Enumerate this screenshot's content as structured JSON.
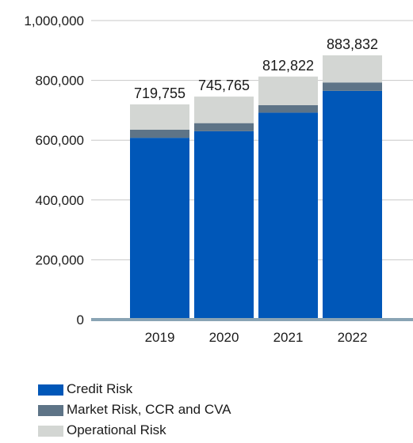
{
  "chart_data": {
    "type": "bar",
    "stacked": true,
    "categories": [
      "2019",
      "2020",
      "2021",
      "2022"
    ],
    "series": [
      {
        "name": "Credit Risk",
        "color": "#0057B8",
        "values": [
          608000,
          630000,
          692000,
          765000
        ]
      },
      {
        "name": "Market Risk, CCR and CVA",
        "color": "#5E7487",
        "values": [
          27000,
          27000,
          25000,
          28000
        ]
      },
      {
        "name": "Operational Risk",
        "color": "#D3D6D3",
        "values": [
          84755,
          88765,
          95822,
          90832
        ]
      }
    ],
    "totals": [
      "719,755",
      "745,765",
      "812,822",
      "883,832"
    ],
    "ylim": [
      0,
      1000000
    ],
    "yticks": [
      {
        "value": 0,
        "label": "0"
      },
      {
        "value": 200000,
        "label": "200,000"
      },
      {
        "value": 400000,
        "label": "400,000"
      },
      {
        "value": 600000,
        "label": "600,000"
      },
      {
        "value": 800000,
        "label": "800,000"
      },
      {
        "value": 1000000,
        "label": "1,000,000"
      }
    ],
    "grid": true,
    "legend_position": "bottom-left"
  }
}
